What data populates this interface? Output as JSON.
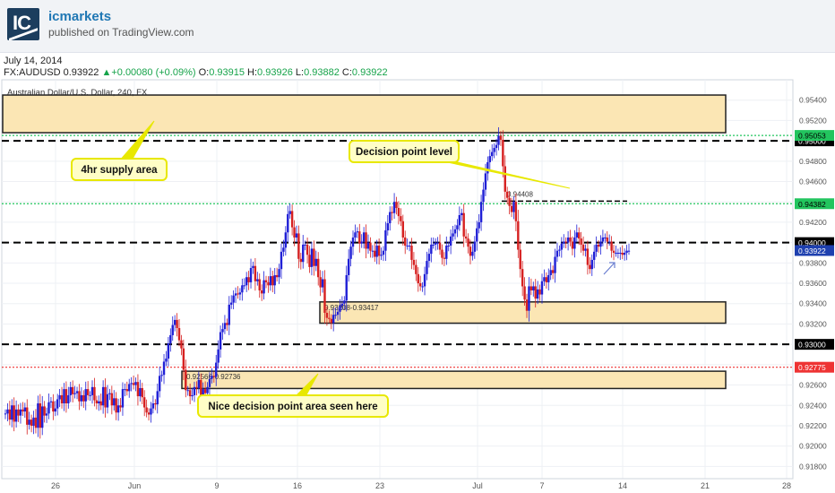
{
  "header": {
    "brand": "icmarkets",
    "published": "published on TradingView.com",
    "logo_text": "IC"
  },
  "date": "July 14, 2014",
  "quote": {
    "symbol": "FX:AUDUSD",
    "price": "0.93922",
    "change": "+0.00080 (+0.09%)",
    "o_label": "O:",
    "o": "0.93915",
    "h_label": "H:",
    "h": "0.93926",
    "l_label": "L:",
    "l": "0.93882",
    "c_label": "C:",
    "c": "0.93922"
  },
  "chart_data": {
    "type": "candlestick",
    "title": "Australian Dollar/U.S. Dollar, 240, FX",
    "ylim": [
      0.9168,
      0.956
    ],
    "y_ticks": [
      0.918,
      0.92,
      0.922,
      0.924,
      0.926,
      0.928,
      0.93,
      0.932,
      0.934,
      0.936,
      0.938,
      0.94,
      0.942,
      0.944,
      0.946,
      0.948,
      0.95,
      0.952,
      0.954
    ],
    "y_tick_labels": [
      "0.91800",
      "0.92000",
      "0.92200",
      "0.92400",
      "0.92600",
      "0.92800",
      "0.93000",
      "0.93200",
      "0.93400",
      "0.93600",
      "0.93800",
      "0.94000",
      "0.94200",
      "0.94400",
      "0.94600",
      "0.94800",
      "0.95000",
      "0.95200",
      "0.95400"
    ],
    "x_labels": [
      "26",
      "Jun",
      "9",
      "16",
      "23",
      "Jul",
      "7",
      "14",
      "21",
      "28"
    ],
    "grid": true,
    "colors": {
      "up": "#1f1fd6",
      "down": "#d62020",
      "zone_fill": "#fbe6b4",
      "zone_border": "#222222",
      "callout_fill": "#fffec6",
      "callout_border": "#e8e800",
      "support": "#ee3333",
      "resistance": "#22c55e"
    },
    "levels": [
      {
        "price": 0.95,
        "label": "0.95000",
        "style": "black-dashed"
      },
      {
        "price": 0.94,
        "label": "0.94000",
        "style": "black-dashed"
      },
      {
        "price": 0.93,
        "label": "0.93000",
        "style": "black-dashed"
      },
      {
        "price": 0.94382,
        "label": "0.94382",
        "style": "green-dotted"
      },
      {
        "price": 0.95053,
        "label": "0.95053",
        "style": "green-dotted"
      },
      {
        "price": 0.92775,
        "label": "0.92775",
        "style": "red-dotted"
      },
      {
        "price": 0.94408,
        "label": "0.94408",
        "style": "short-dashed"
      }
    ],
    "last_price": {
      "price": 0.93922,
      "label": "0.93922"
    },
    "zones": [
      {
        "name": "supply",
        "low": 0.9508,
        "high": 0.9545
      },
      {
        "name": "demand-1",
        "low": 0.93208,
        "high": 0.93417,
        "label": "0.93208-0.93417"
      },
      {
        "name": "demand-2",
        "low": 0.92566,
        "high": 0.92736,
        "label": "0.92566-0.92736"
      }
    ],
    "annotations": [
      {
        "text": "4hr supply area"
      },
      {
        "text": "Decision point level"
      },
      {
        "text": "Nice decision point area seen here"
      }
    ],
    "candles": [
      [
        0.9232,
        0.9236,
        0.9226,
        0.924,
        0.9224,
        0.9236
      ],
      [
        0.923,
        0.9236,
        0.9234,
        0.9238,
        0.9221,
        0.9226
      ],
      [
        0.922,
        0.9228,
        0.9218,
        0.9242,
        0.9218,
        0.9239
      ],
      [
        0.923,
        0.9232,
        0.9243,
        0.9244,
        0.9234,
        0.9237
      ],
      [
        0.9246,
        0.925,
        0.9242,
        0.9256,
        0.9242,
        0.925
      ],
      [
        0.9258,
        0.9251,
        0.9252,
        0.9254,
        0.9244,
        0.925
      ],
      [
        0.9244,
        0.9256,
        0.925,
        0.925,
        0.9258,
        0.9245
      ],
      [
        0.9242,
        0.9244,
        0.924,
        0.9258,
        0.9238,
        0.9251
      ],
      [
        0.9252,
        0.924,
        0.9247,
        0.9233,
        0.924,
        0.9238
      ],
      [
        0.9256,
        0.9256,
        0.9254,
        0.9261,
        0.9262,
        0.926
      ],
      [
        0.9263,
        0.9249,
        0.9257,
        0.9248,
        0.9238,
        0.9233
      ],
      [
        0.9231,
        0.9237,
        0.9242,
        0.9241,
        0.9254,
        0.9269
      ],
      [
        0.927,
        0.9283,
        0.9286,
        0.9301,
        0.9309,
        0.9319
      ],
      [
        0.9324,
        0.9316,
        0.9304,
        0.9296,
        0.9275,
        0.9255
      ],
      [
        0.9255,
        0.9249,
        0.925,
        0.9258,
        0.9257,
        0.9265
      ],
      [
        0.9249,
        0.9256,
        0.9252,
        0.9258,
        0.9266,
        0.9269
      ],
      [
        0.9268,
        0.9282,
        0.9295,
        0.9312,
        0.9315,
        0.9321
      ],
      [
        0.9319,
        0.9339,
        0.9341,
        0.9348,
        0.935,
        0.9349
      ],
      [
        0.9351,
        0.9358,
        0.9358,
        0.9366,
        0.9361,
        0.9375
      ],
      [
        0.9377,
        0.9362,
        0.9364,
        0.9353,
        0.935,
        0.9363
      ],
      [
        0.9361,
        0.9358,
        0.9367,
        0.9358,
        0.9368,
        0.9366
      ],
      [
        0.9374,
        0.9391,
        0.9395,
        0.941,
        0.9428,
        0.9431
      ],
      [
        0.9415,
        0.9405,
        0.9409,
        0.9384,
        0.9381,
        0.9398
      ],
      [
        0.9398,
        0.9388,
        0.9376,
        0.9394,
        0.9377,
        0.9384
      ],
      [
        0.9366,
        0.9356,
        0.9364,
        0.9331,
        0.9326,
        0.9325
      ],
      [
        0.9321,
        0.9329,
        0.9329,
        0.9332,
        0.9338,
        0.934
      ],
      [
        0.9343,
        0.9368,
        0.9384,
        0.9396,
        0.9405,
        0.941
      ],
      [
        0.9411,
        0.9399,
        0.9401,
        0.941,
        0.9394,
        0.94
      ],
      [
        0.9392,
        0.9392,
        0.9386,
        0.9397,
        0.9387,
        0.9388
      ],
      [
        0.9392,
        0.9412,
        0.9419,
        0.943,
        0.9429,
        0.944
      ],
      [
        0.9434,
        0.9426,
        0.9421,
        0.9405,
        0.9397,
        0.9397
      ],
      [
        0.9397,
        0.9383,
        0.9378,
        0.9369,
        0.936,
        0.9357
      ],
      [
        0.9357,
        0.9369,
        0.9382,
        0.9389,
        0.9398,
        0.9398
      ],
      [
        0.94,
        0.94,
        0.9393,
        0.9385,
        0.9384,
        0.9397
      ],
      [
        0.9397,
        0.9406,
        0.9409,
        0.9413,
        0.9417,
        0.9427
      ],
      [
        0.9429,
        0.9406,
        0.9404,
        0.9396,
        0.9387,
        0.9391
      ],
      [
        0.9401,
        0.9414,
        0.942,
        0.944,
        0.9452,
        0.9468
      ],
      [
        0.9479,
        0.9485,
        0.9489,
        0.9493,
        0.9496,
        0.9505
      ],
      [
        0.9501,
        0.9475,
        0.945,
        0.9444,
        0.9436,
        0.943
      ],
      [
        0.944,
        0.9421,
        0.9393,
        0.9374,
        0.9357,
        0.9344
      ],
      [
        0.9333,
        0.9357,
        0.9353,
        0.9357,
        0.9345,
        0.9354
      ],
      [
        0.9349,
        0.9362,
        0.9366,
        0.9361,
        0.9368,
        0.9373
      ],
      [
        0.937,
        0.9386,
        0.9392,
        0.9393,
        0.9399,
        0.9401
      ],
      [
        0.94,
        0.9405,
        0.9401,
        0.9394,
        0.9405,
        0.941
      ],
      [
        0.9404,
        0.9398,
        0.9392,
        0.9394,
        0.9378,
        0.9374
      ],
      [
        0.9383,
        0.9391,
        0.9398,
        0.9396,
        0.9401,
        0.9405
      ],
      [
        0.9405,
        0.9401,
        0.9401,
        0.9392,
        0.939,
        0.939
      ],
      [
        0.939,
        0.939,
        0.9388,
        0.939,
        0.9392,
        0.9392
      ]
    ]
  }
}
